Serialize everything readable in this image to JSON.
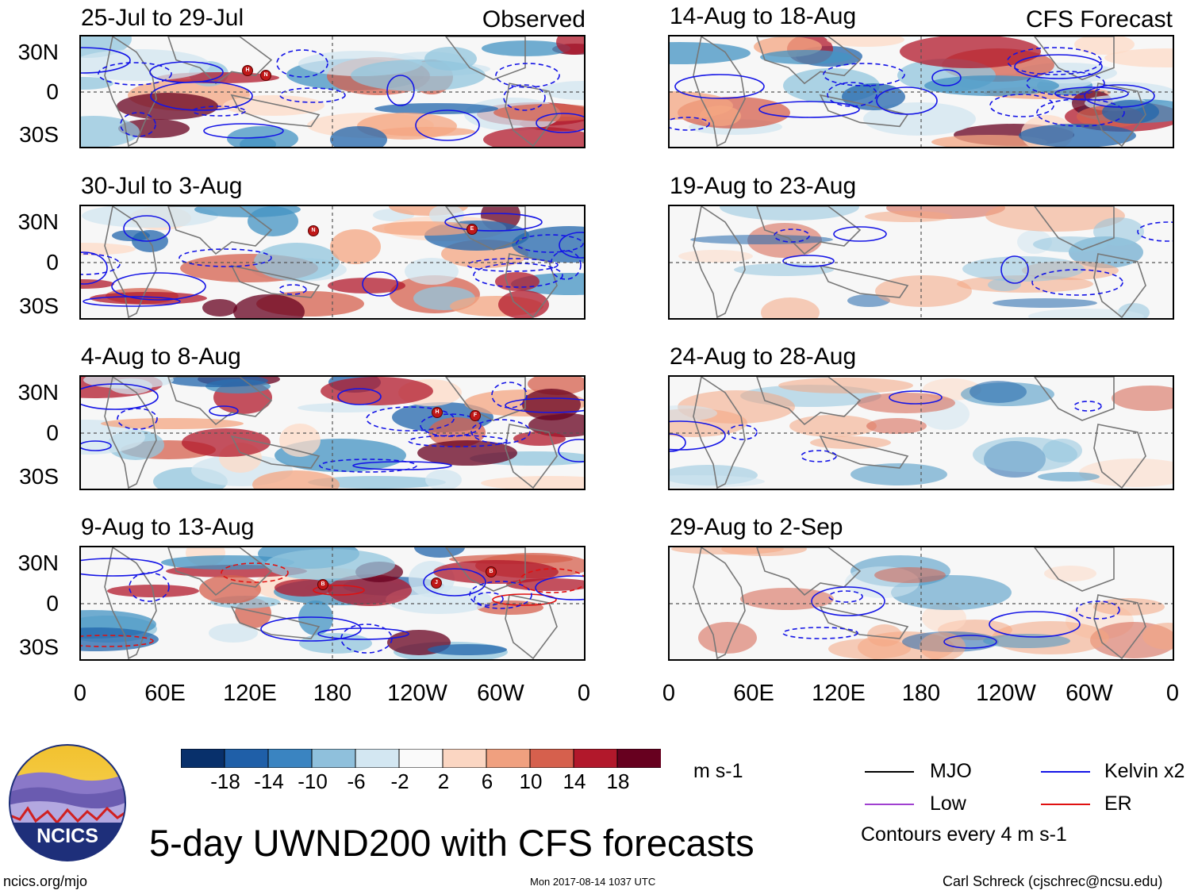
{
  "observed_label": "Observed",
  "forecast_label": "CFS Forecast",
  "panels_left": [
    {
      "title": "25-Jul to 29-Jul",
      "storms": [
        "H",
        "N"
      ]
    },
    {
      "title": "30-Jul to 3-Aug",
      "storms": [
        "N",
        "E"
      ]
    },
    {
      "title": "4-Aug to 8-Aug",
      "storms": [
        "H",
        "F"
      ]
    },
    {
      "title": "9-Aug to 13-Aug",
      "storms": [
        "B",
        "J",
        "B"
      ]
    }
  ],
  "panels_right": [
    {
      "title": "14-Aug to 18-Aug"
    },
    {
      "title": "19-Aug to 23-Aug"
    },
    {
      "title": "24-Aug to 28-Aug"
    },
    {
      "title": "29-Aug to 2-Sep"
    }
  ],
  "lat_labels": [
    "30N",
    "0",
    "30S"
  ],
  "lon_labels": [
    "0",
    "60E",
    "120E",
    "180",
    "120W",
    "60W",
    "0"
  ],
  "colorbar": {
    "labels": [
      "-18",
      "-14",
      "-10",
      "-6",
      "-2",
      "2",
      "6",
      "10",
      "14",
      "18"
    ],
    "colors": [
      "#08306b",
      "#1f5fa8",
      "#3a84c1",
      "#8fc0dc",
      "#d3e7f2",
      "#fafafa",
      "#fbd6c2",
      "#f0a07f",
      "#d6604d",
      "#b2182b",
      "#67001f"
    ],
    "unit": "m s-1"
  },
  "legend": {
    "items": [
      {
        "label": "MJO",
        "color": "#000000"
      },
      {
        "label": "Kelvin x2",
        "color": "#1414e6"
      },
      {
        "label": "Low",
        "color": "#a040d0"
      },
      {
        "label": "ER",
        "color": "#e01010"
      }
    ],
    "note": "Contours every 4 m s-1"
  },
  "logo_text": "NCICS",
  "main_title": "5-day UWND200 with CFS forecasts",
  "footer_left": "ncics.org/mjo",
  "footer_center": "Mon 2017-08-14 1037 UTC",
  "footer_right": "Carl Schreck (cjschrec@ncsu.edu)"
}
